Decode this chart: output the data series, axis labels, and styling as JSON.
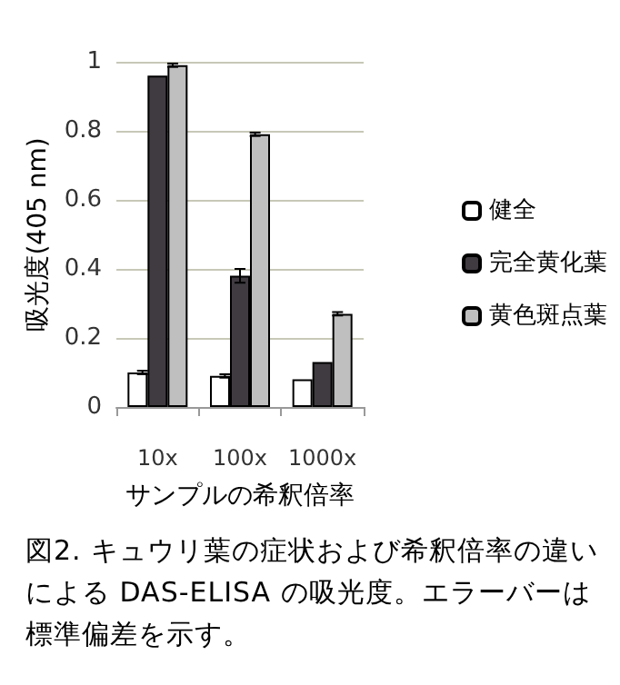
{
  "chart_data": {
    "type": "bar",
    "xlabel": "サンプルの希釈倍率",
    "ylabel": "吸光度(405 nm)",
    "categories": [
      "10x",
      "100x",
      "1000x"
    ],
    "series": [
      {
        "name": "健全",
        "color": "#ffffff",
        "values": [
          0.1,
          0.09,
          0.08
        ],
        "errors": [
          0.005,
          0.005,
          null
        ]
      },
      {
        "name": "完全黄化葉",
        "color": "#3f3b40",
        "values": [
          0.96,
          0.38,
          0.13
        ],
        "errors": [
          null,
          0.02,
          null
        ]
      },
      {
        "name": "黄色斑点葉",
        "color": "#bfbfbf",
        "values": [
          0.99,
          0.79,
          0.27
        ],
        "errors": [
          0.005,
          0.005,
          0.005
        ]
      }
    ],
    "ylim": [
      0,
      1
    ],
    "yticks": [
      0,
      0.2,
      0.4,
      0.6,
      0.8,
      1
    ],
    "grid": "y",
    "legend": "right",
    "annotations": [
      "図2. キュウリ葉の症状および希釈倍率の違いによる DAS-ELISA の吸光度。エラーバーは標準偏差を示す。"
    ]
  }
}
